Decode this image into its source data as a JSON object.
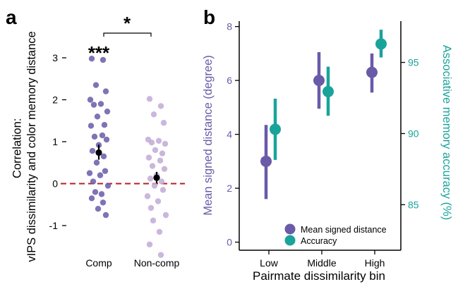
{
  "chart_data": [
    {
      "type": "scatter",
      "panel_label": "a",
      "ylabel": "Correlation:\nvIPS dissimilarity and color memory distance",
      "categories": [
        "Comp",
        "Non-comp"
      ],
      "ylim": [
        -1.35,
        3.3
      ],
      "y_ticks": [
        -1,
        0,
        1,
        2,
        3
      ],
      "reference_line": {
        "y": 0,
        "style": "dashed",
        "color": "#b22222"
      },
      "significance": {
        "comp_vs_zero": "***",
        "comp_vs_noncomp": "*"
      },
      "series": [
        {
          "name": "Comp",
          "color": "#6a5aa8",
          "points": [
            2.98,
            2.95,
            2.35,
            2.2,
            2.0,
            1.9,
            1.88,
            1.72,
            1.6,
            1.4,
            1.38,
            1.15,
            1.12,
            1.05,
            0.92,
            0.78,
            0.65,
            0.5,
            0.3,
            0.25,
            0.2,
            0.05,
            -0.05,
            -0.2,
            -0.25,
            -0.35,
            -0.45,
            -0.6,
            -0.75
          ],
          "mean": 0.74,
          "error": [
            0.57,
            0.93
          ]
        },
        {
          "name": "Non-comp",
          "color": "#c2a9d6",
          "points": [
            2.02,
            1.85,
            1.65,
            1.45,
            1.05,
            1.02,
            0.98,
            0.95,
            0.8,
            0.72,
            0.62,
            0.55,
            0.42,
            0.35,
            0.2,
            0.12,
            0.05,
            -0.05,
            -0.15,
            -0.3,
            -0.42,
            -0.58,
            -0.75,
            -0.88,
            -1.15,
            -1.45,
            -1.7
          ],
          "mean": 0.14,
          "error": [
            0.01,
            0.28
          ]
        }
      ]
    },
    {
      "type": "scatter",
      "panel_label": "b",
      "xlabel": "Pairmate dissimilarity bin",
      "categories": [
        "Low",
        "Middle",
        "High"
      ],
      "y_left": {
        "label": "Mean signed distance (degree)",
        "ticks": [
          0,
          2,
          4,
          6,
          8
        ],
        "lim": [
          -0.3,
          8.2
        ],
        "color": "#6a5aa8"
      },
      "y_right": {
        "label": "Associative memory accuracy (%)",
        "ticks": [
          85,
          90,
          95
        ],
        "lim": [
          81.8,
          97.9
        ],
        "color": "#1aa39a"
      },
      "series": [
        {
          "name": "Mean signed distance",
          "color": "#6a5aa8",
          "axis": "left",
          "values": [
            3.0,
            6.0,
            6.3
          ],
          "error_low": [
            1.6,
            4.95,
            5.55
          ],
          "error_high": [
            4.35,
            7.05,
            7.0
          ]
        },
        {
          "name": "Accuracy",
          "color": "#1aa39a",
          "axis": "right",
          "values": [
            90.3,
            92.95,
            96.3
          ],
          "error_low": [
            88.15,
            91.25,
            95.35
          ],
          "error_high": [
            92.45,
            94.7,
            97.3
          ]
        }
      ],
      "legend": {
        "placement": "bottom-right",
        "entries": [
          "Mean signed distance",
          "Accuracy"
        ]
      }
    }
  ]
}
